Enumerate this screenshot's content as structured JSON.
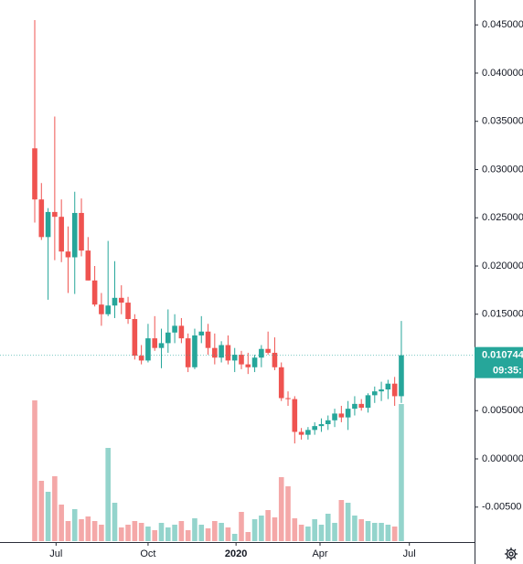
{
  "chart_data": {
    "type": "candlestick",
    "open": [
      0.0322,
      0.0269,
      0.023,
      0.0256,
      0.0251,
      0.0215,
      0.0209,
      0.0255,
      0.0216,
      0.0185,
      0.016,
      0.015,
      0.0159,
      0.0167,
      0.0162,
      0.0145,
      0.0107,
      0.0102,
      0.0125,
      0.0115,
      0.012,
      0.0131,
      0.0138,
      0.0125,
      0.0095,
      0.0128,
      0.0132,
      0.0115,
      0.0105,
      0.0118,
      0.0102,
      0.0108,
      0.0098,
      0.0095,
      0.0105,
      0.0114,
      0.011,
      0.0095,
      0.0063,
      0.0062,
      0.0028,
      0.0025,
      0.003,
      0.0034,
      0.0036,
      0.004,
      0.0047,
      0.0043,
      0.0052,
      0.0057,
      0.0053,
      0.0066,
      0.007,
      0.0072,
      0.0078,
      0.0065
    ],
    "high": [
      0.0455,
      0.0286,
      0.026,
      0.0355,
      0.0269,
      0.0241,
      0.0277,
      0.027,
      0.023,
      0.02,
      0.0172,
      0.0226,
      0.0205,
      0.018,
      0.0168,
      0.015,
      0.0118,
      0.014,
      0.0148,
      0.0135,
      0.0155,
      0.015,
      0.0146,
      0.013,
      0.0135,
      0.0148,
      0.014,
      0.013,
      0.0122,
      0.0128,
      0.0115,
      0.0112,
      0.011,
      0.0108,
      0.0118,
      0.0132,
      0.0126,
      0.01,
      0.007,
      0.0065,
      0.0032,
      0.0033,
      0.0038,
      0.0042,
      0.0045,
      0.0052,
      0.0055,
      0.006,
      0.0065,
      0.0062,
      0.0068,
      0.0075,
      0.008,
      0.0082,
      0.0085,
      0.0143
    ],
    "low": [
      0.0245,
      0.0227,
      0.0165,
      0.0206,
      0.0204,
      0.0172,
      0.0171,
      0.021,
      0.0185,
      0.0158,
      0.0138,
      0.0148,
      0.0146,
      0.015,
      0.014,
      0.0103,
      0.0098,
      0.01,
      0.0112,
      0.0094,
      0.011,
      0.012,
      0.012,
      0.009,
      0.0093,
      0.012,
      0.0108,
      0.0098,
      0.01,
      0.0098,
      0.009,
      0.0093,
      0.0088,
      0.009,
      0.0095,
      0.0108,
      0.0092,
      0.006,
      0.0055,
      0.0016,
      0.002,
      0.002,
      0.0025,
      0.0028,
      0.003,
      0.0033,
      0.0038,
      0.003,
      0.0045,
      0.005,
      0.0048,
      0.0058,
      0.006,
      0.0062,
      0.0055,
      0.0058
    ],
    "close": [
      0.0269,
      0.023,
      0.0256,
      0.0251,
      0.0215,
      0.0209,
      0.0255,
      0.0216,
      0.0185,
      0.016,
      0.015,
      0.0159,
      0.0167,
      0.0162,
      0.0145,
      0.0107,
      0.0102,
      0.0125,
      0.0115,
      0.012,
      0.0131,
      0.0138,
      0.0125,
      0.0095,
      0.0128,
      0.0132,
      0.0115,
      0.0105,
      0.0118,
      0.0102,
      0.0108,
      0.0098,
      0.0095,
      0.0105,
      0.0114,
      0.011,
      0.0095,
      0.0063,
      0.0062,
      0.0028,
      0.0025,
      0.003,
      0.0034,
      0.0036,
      0.004,
      0.0047,
      0.0043,
      0.0052,
      0.0057,
      0.0053,
      0.0066,
      0.007,
      0.0072,
      0.0078,
      0.0065,
      0.010744
    ],
    "volume": [
      154,
      66,
      54,
      71,
      40,
      22,
      35,
      24,
      27,
      22,
      18,
      102,
      42,
      15,
      18,
      22,
      20,
      16,
      12,
      20,
      15,
      18,
      22,
      12,
      25,
      18,
      14,
      22,
      20,
      15,
      8,
      32,
      10,
      24,
      28,
      34,
      26,
      70,
      60,
      25,
      18,
      16,
      24,
      18,
      30,
      20,
      45,
      42,
      28,
      24,
      22,
      20,
      20,
      18,
      16,
      150
    ],
    "volume_lim": [
      0,
      160
    ],
    "up_color": "#26a69a",
    "down_color": "#ef5350",
    "up_volume_color": "#94d4cc",
    "down_volume_color": "#f4a8a8",
    "ylim": [
      -0.00853,
      0.04758
    ],
    "yticks": [
      {
        "value": -0.005,
        "label": "-0.00500"
      },
      {
        "value": 0,
        "label": "0.000000"
      },
      {
        "value": 0.005,
        "label": "0.005000"
      },
      {
        "value": 0.01,
        "label": "0.010000"
      },
      {
        "value": 0.015,
        "label": "0.015000"
      },
      {
        "value": 0.02,
        "label": "0.020000"
      },
      {
        "value": 0.025,
        "label": "0.025000"
      },
      {
        "value": 0.03,
        "label": "0.030000"
      },
      {
        "value": 0.035,
        "label": "0.035000"
      },
      {
        "value": 0.04,
        "label": "0.040000"
      },
      {
        "value": 0.045,
        "label": "0.045000"
      }
    ],
    "xticks": [
      {
        "value": 3.2,
        "label": "Jul"
      },
      {
        "value": 17,
        "label": "Oct"
      },
      {
        "value": 30.2,
        "label": "2020"
      },
      {
        "value": 42.8,
        "label": "Apr"
      },
      {
        "value": 56.2,
        "label": "Jul"
      }
    ],
    "last_price": {
      "value": 0.010744,
      "label": "0.010744"
    },
    "countdown": "09:35:"
  }
}
